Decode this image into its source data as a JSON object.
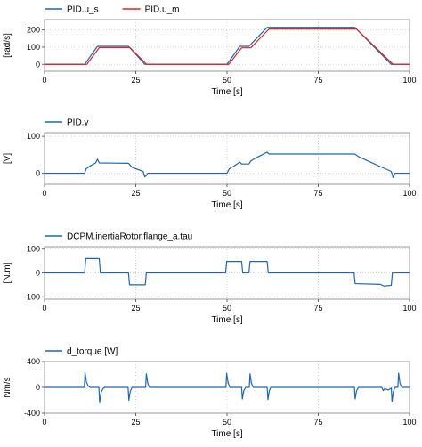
{
  "chart_data": [
    {
      "type": "line",
      "xlabel": "Time [s]",
      "ylabel": "[rad/s]",
      "xlim": [
        0,
        100
      ],
      "ylim": [
        -40,
        260
      ],
      "xticks": [
        "0",
        "25",
        "50",
        "75",
        "100"
      ],
      "yticks": [
        "0",
        "100",
        "200"
      ],
      "grid": true,
      "legend": "top-left",
      "series": [
        {
          "name": "PID.u_s",
          "color": "#2166ac",
          "points": [
            [
              0,
              0
            ],
            [
              11,
              0
            ],
            [
              14.5,
              105
            ],
            [
              23,
              105
            ],
            [
              27.5,
              0
            ],
            [
              50,
              0
            ],
            [
              53.5,
              105
            ],
            [
              56,
              105
            ],
            [
              61,
              215
            ],
            [
              85,
              215
            ],
            [
              95,
              0
            ],
            [
              100,
              0
            ]
          ]
        },
        {
          "name": "PID.u_m",
          "color": "#d62728",
          "points": [
            [
              0,
              0
            ],
            [
              11.6,
              0
            ],
            [
              15,
              97
            ],
            [
              23.4,
              97
            ],
            [
              28,
              0
            ],
            [
              50.5,
              0
            ],
            [
              54,
              96
            ],
            [
              56.5,
              96
            ],
            [
              61.5,
              205
            ],
            [
              85.5,
              205
            ],
            [
              95.5,
              0
            ],
            [
              100,
              0
            ]
          ]
        }
      ]
    },
    {
      "type": "line",
      "xlabel": "Time [s]",
      "ylabel": "[V]",
      "xlim": [
        0,
        100
      ],
      "ylim": [
        -30,
        110
      ],
      "xticks": [
        "0",
        "25",
        "50",
        "75",
        "100"
      ],
      "yticks": [
        "0",
        "100"
      ],
      "grid": true,
      "legend": "top-left",
      "series": [
        {
          "name": "PID.y",
          "color": "#2166ac",
          "points": [
            [
              0,
              0
            ],
            [
              11,
              0
            ],
            [
              11.4,
              12
            ],
            [
              12.5,
              20
            ],
            [
              14,
              28
            ],
            [
              14.5,
              38
            ],
            [
              15,
              28
            ],
            [
              23,
              27
            ],
            [
              24,
              16
            ],
            [
              27,
              5
            ],
            [
              27.5,
              -10
            ],
            [
              28,
              -5
            ],
            [
              28.3,
              0
            ],
            [
              50,
              0
            ],
            [
              50.6,
              12
            ],
            [
              52,
              20
            ],
            [
              53.5,
              30
            ],
            [
              54,
              25
            ],
            [
              56,
              25
            ],
            [
              56.5,
              33
            ],
            [
              58,
              42
            ],
            [
              61,
              57
            ],
            [
              61.5,
              52
            ],
            [
              85,
              52
            ],
            [
              86,
              45
            ],
            [
              92,
              18
            ],
            [
              95,
              5
            ],
            [
              95.5,
              -12
            ],
            [
              96,
              0
            ],
            [
              100,
              0
            ]
          ]
        }
      ]
    },
    {
      "type": "line",
      "xlabel": "Time [s]",
      "ylabel": "[N.m]",
      "xlim": [
        0,
        100
      ],
      "ylim": [
        -110,
        110
      ],
      "xticks": [
        "0",
        "25",
        "50",
        "75",
        "100"
      ],
      "yticks": [
        "-100",
        "0",
        "100"
      ],
      "grid": true,
      "legend": "top-left",
      "series": [
        {
          "name": "DCPM.inertiaRotor.flange_a.tau",
          "color": "#2166ac",
          "points": [
            [
              0,
              0
            ],
            [
              11,
              0
            ],
            [
              11.3,
              60
            ],
            [
              15,
              60
            ],
            [
              15.3,
              0
            ],
            [
              23,
              0
            ],
            [
              23.3,
              -50
            ],
            [
              27.6,
              -50
            ],
            [
              27.9,
              0
            ],
            [
              49.6,
              0
            ],
            [
              49.9,
              48
            ],
            [
              54,
              48
            ],
            [
              54.3,
              0
            ],
            [
              56,
              0
            ],
            [
              56.3,
              48
            ],
            [
              61,
              48
            ],
            [
              61.3,
              0
            ],
            [
              84.8,
              0
            ],
            [
              85.1,
              -45
            ],
            [
              92,
              -48
            ],
            [
              93,
              -55
            ],
            [
              95,
              -52
            ],
            [
              95.3,
              0
            ],
            [
              100,
              0
            ]
          ]
        }
      ]
    },
    {
      "type": "line",
      "xlabel": "Time [s]",
      "ylabel": "Nm/s",
      "xlim": [
        0,
        100
      ],
      "ylim": [
        -400,
        400
      ],
      "xticks": [
        "0",
        "25",
        "50",
        "75",
        "100"
      ],
      "yticks": [
        "-400",
        "0",
        "400"
      ],
      "grid": true,
      "legend": "top-left",
      "series": [
        {
          "name": "d_torque [W]",
          "color": "#2166ac",
          "points": [
            [
              0,
              0
            ],
            [
              10.9,
              0
            ],
            [
              11.1,
              230
            ],
            [
              11.5,
              80
            ],
            [
              12,
              20
            ],
            [
              12.5,
              0
            ],
            [
              14.9,
              0
            ],
            [
              15.1,
              -240
            ],
            [
              15.5,
              -80
            ],
            [
              16,
              -20
            ],
            [
              16.5,
              0
            ],
            [
              22.9,
              0
            ],
            [
              23.1,
              -200
            ],
            [
              23.5,
              -60
            ],
            [
              24,
              0
            ],
            [
              27.7,
              0
            ],
            [
              27.9,
              210
            ],
            [
              28.3,
              60
            ],
            [
              28.8,
              0
            ],
            [
              49.7,
              0
            ],
            [
              49.9,
              220
            ],
            [
              50.3,
              70
            ],
            [
              50.8,
              0
            ],
            [
              54,
              0
            ],
            [
              54.2,
              -180
            ],
            [
              54.6,
              -50
            ],
            [
              55.1,
              0
            ],
            [
              56.1,
              0
            ],
            [
              56.3,
              210
            ],
            [
              56.7,
              60
            ],
            [
              57.2,
              0
            ],
            [
              61,
              0
            ],
            [
              61.2,
              -190
            ],
            [
              61.6,
              -50
            ],
            [
              62,
              0
            ],
            [
              84.9,
              0
            ],
            [
              85.1,
              -180
            ],
            [
              85.5,
              -50
            ],
            [
              86,
              0
            ],
            [
              92.4,
              0
            ],
            [
              92.8,
              -50
            ],
            [
              93.2,
              -20
            ],
            [
              94.2,
              -40
            ],
            [
              95,
              -10
            ],
            [
              95.2,
              -220
            ],
            [
              95.6,
              -60
            ],
            [
              96,
              0
            ],
            [
              96.8,
              0
            ],
            [
              97,
              220
            ],
            [
              97.4,
              60
            ],
            [
              97.9,
              0
            ],
            [
              100,
              0
            ]
          ]
        }
      ]
    }
  ]
}
